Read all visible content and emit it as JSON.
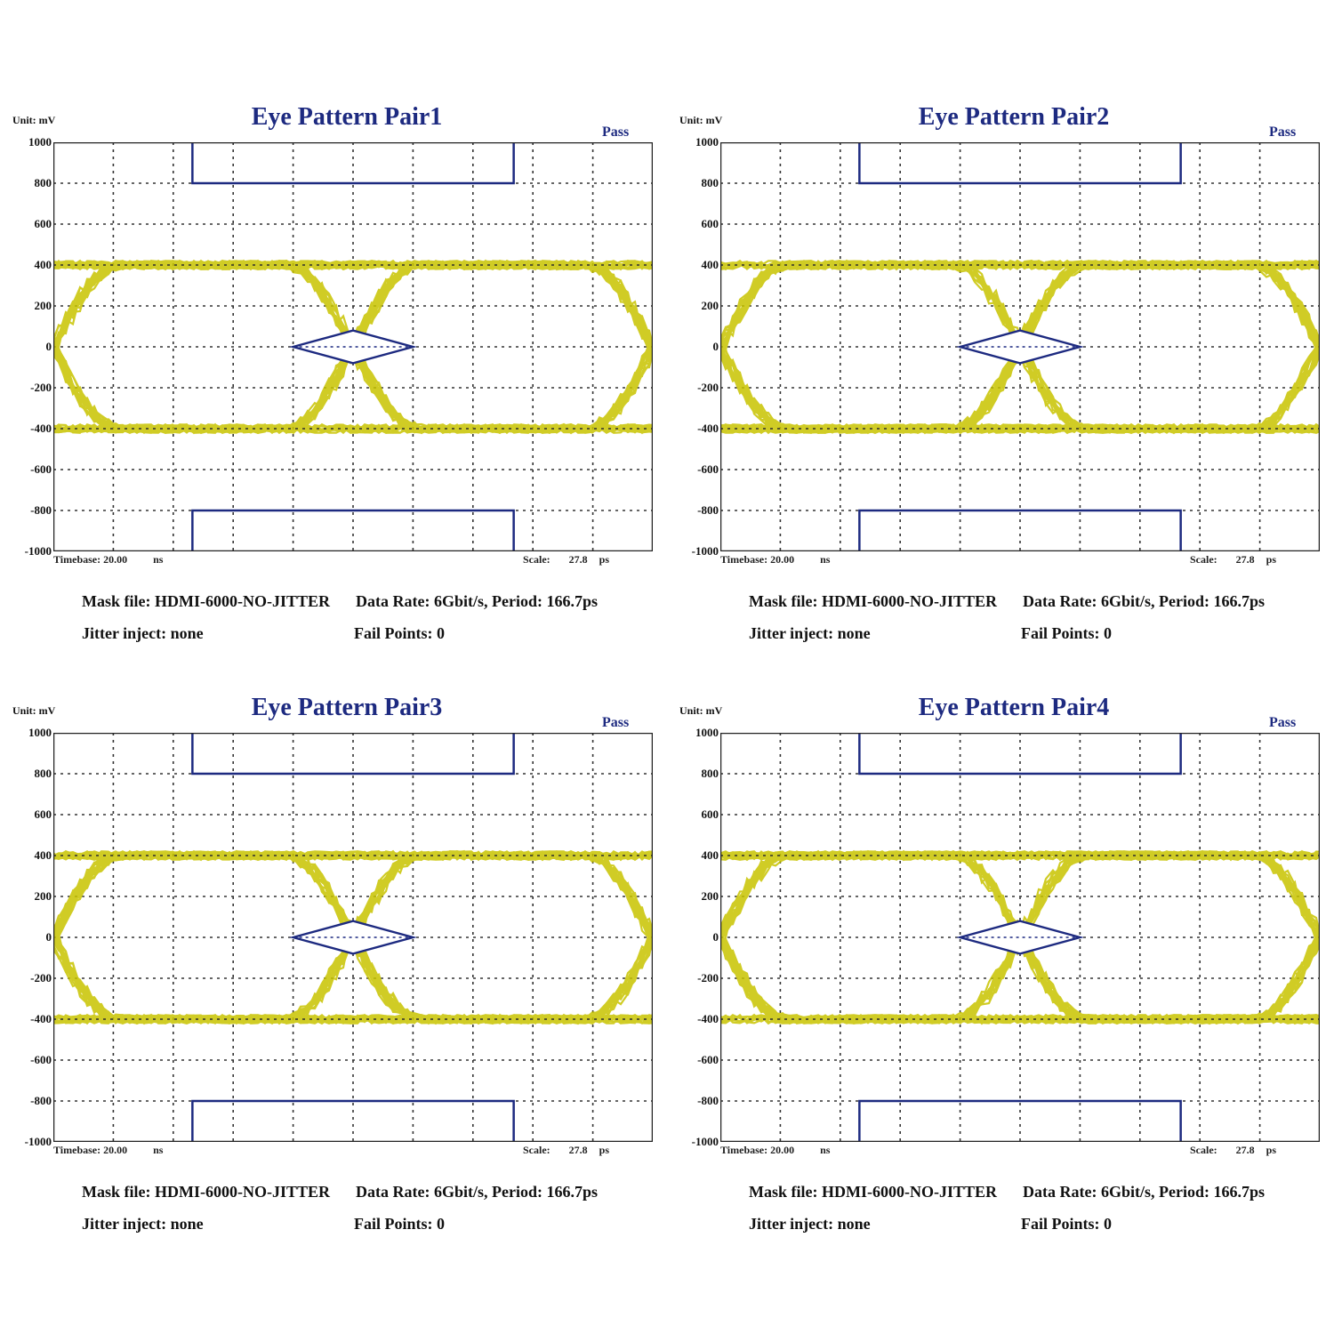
{
  "chart_data": [
    {
      "type": "eye-diagram",
      "title": "Eye Pattern Pair1",
      "status": "Pass",
      "unit_label": "Unit: mV",
      "ylim": [
        -1000,
        1000
      ],
      "y_ticks": [
        "1000",
        "800",
        "600",
        "400",
        "200",
        "0",
        "-200",
        "-400",
        "-600",
        "-800",
        "-1000"
      ],
      "grid": true,
      "signal_levels_mv": [
        400,
        -400
      ],
      "eye_crossings_ui": [
        0.0,
        0.5,
        1.0
      ],
      "mask": {
        "top_bar_mv": 800,
        "bottom_bar_mv": -800,
        "center_diamond_height_mv": 160
      },
      "timebase_label": "Timebase:",
      "timebase_value": "20.00",
      "timebase_unit": "ns",
      "scale_label": "Scale:",
      "scale_value": "27.8",
      "scale_unit": "ps",
      "mask_file": "Mask file: HDMI-6000-NO-JITTER",
      "data_rate": "Data Rate: 6Gbit/s, Period: 166.7ps",
      "jitter_inject": "Jitter inject: none",
      "fail_points": "Fail Points: 0",
      "colors": {
        "trace": "#c8c400",
        "mask": "#1d2a80",
        "grid": "#333333"
      }
    },
    {
      "type": "eye-diagram",
      "title": "Eye Pattern Pair2",
      "status": "Pass",
      "unit_label": "Unit: mV",
      "ylim": [
        -1000,
        1000
      ],
      "y_ticks": [
        "1000",
        "800",
        "600",
        "400",
        "200",
        "0",
        "-200",
        "-400",
        "-600",
        "-800",
        "-1000"
      ],
      "grid": true,
      "signal_levels_mv": [
        400,
        -400
      ],
      "eye_crossings_ui": [
        0.0,
        0.5,
        1.0
      ],
      "mask": {
        "top_bar_mv": 800,
        "bottom_bar_mv": -800,
        "center_diamond_height_mv": 160
      },
      "timebase_label": "Timebase:",
      "timebase_value": "20.00",
      "timebase_unit": "ns",
      "scale_label": "Scale:",
      "scale_value": "27.8",
      "scale_unit": "ps",
      "mask_file": "Mask file: HDMI-6000-NO-JITTER",
      "data_rate": "Data Rate: 6Gbit/s, Period: 166.7ps",
      "jitter_inject": "Jitter inject: none",
      "fail_points": "Fail Points: 0",
      "colors": {
        "trace": "#c8c400",
        "mask": "#1d2a80",
        "grid": "#333333"
      }
    },
    {
      "type": "eye-diagram",
      "title": "Eye Pattern Pair3",
      "status": "Pass",
      "unit_label": "Unit: mV",
      "ylim": [
        -1000,
        1000
      ],
      "y_ticks": [
        "1000",
        "800",
        "600",
        "400",
        "200",
        "0",
        "-200",
        "-400",
        "-600",
        "-800",
        "-1000"
      ],
      "grid": true,
      "signal_levels_mv": [
        400,
        -400
      ],
      "eye_crossings_ui": [
        0.0,
        0.5,
        1.0
      ],
      "mask": {
        "top_bar_mv": 800,
        "bottom_bar_mv": -800,
        "center_diamond_height_mv": 160
      },
      "timebase_label": "Timebase:",
      "timebase_value": "20.00",
      "timebase_unit": "ns",
      "scale_label": "Scale:",
      "scale_value": "27.8",
      "scale_unit": "ps",
      "mask_file": "Mask file: HDMI-6000-NO-JITTER",
      "data_rate": "Data Rate: 6Gbit/s, Period: 166.7ps",
      "jitter_inject": "Jitter inject: none",
      "fail_points": "Fail Points: 0",
      "colors": {
        "trace": "#c8c400",
        "mask": "#1d2a80",
        "grid": "#333333"
      }
    },
    {
      "type": "eye-diagram",
      "title": "Eye Pattern Pair4",
      "status": "Pass",
      "unit_label": "Unit: mV",
      "ylim": [
        -1000,
        1000
      ],
      "y_ticks": [
        "1000",
        "800",
        "600",
        "400",
        "200",
        "0",
        "-200",
        "-400",
        "-600",
        "-800",
        "-1000"
      ],
      "grid": true,
      "signal_levels_mv": [
        400,
        -400
      ],
      "eye_crossings_ui": [
        0.0,
        0.5,
        1.0
      ],
      "mask": {
        "top_bar_mv": 800,
        "bottom_bar_mv": -800,
        "center_diamond_height_mv": 160
      },
      "timebase_label": "Timebase:",
      "timebase_value": "20.00",
      "timebase_unit": "ns",
      "scale_label": "Scale:",
      "scale_value": "27.8",
      "scale_unit": "ps",
      "mask_file": "Mask file: HDMI-6000-NO-JITTER",
      "data_rate": "Data Rate: 6Gbit/s, Period: 166.7ps",
      "jitter_inject": "Jitter inject: none",
      "fail_points": "Fail Points: 0",
      "colors": {
        "trace": "#c8c400",
        "mask": "#1d2a80",
        "grid": "#333333"
      }
    }
  ]
}
